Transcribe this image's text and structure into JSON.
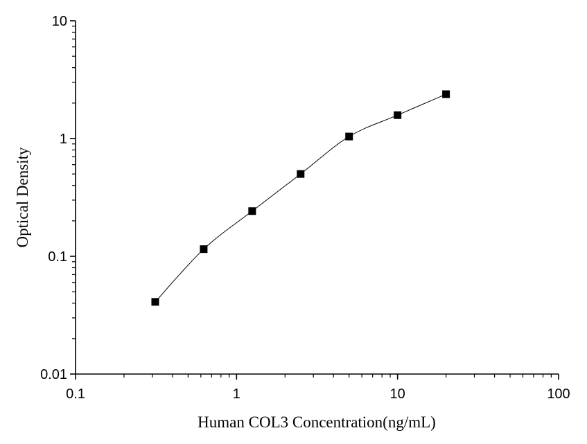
{
  "chart_data": {
    "type": "scatter",
    "title": "",
    "xlabel": "Human COL3  Concentration(ng/mL)",
    "ylabel": "Optical Density",
    "xscale": "log",
    "yscale": "log",
    "xlim": [
      0.1,
      100
    ],
    "ylim": [
      0.01,
      10
    ],
    "x_ticks": [
      "0.1",
      "1",
      "10",
      "100"
    ],
    "y_ticks": [
      "0.01",
      "0.1",
      "1",
      "10"
    ],
    "grid": false,
    "legend": "none",
    "marker": "square",
    "fit_line": true,
    "series": [
      {
        "x": [
          0.3125,
          0.625,
          1.25,
          2.5,
          5,
          10,
          20
        ],
        "y": [
          0.041,
          0.115,
          0.242,
          0.5,
          1.04,
          1.58,
          2.38
        ]
      }
    ],
    "colors": {
      "marker": "#000000",
      "line": "#000000",
      "axis": "#000000"
    }
  }
}
